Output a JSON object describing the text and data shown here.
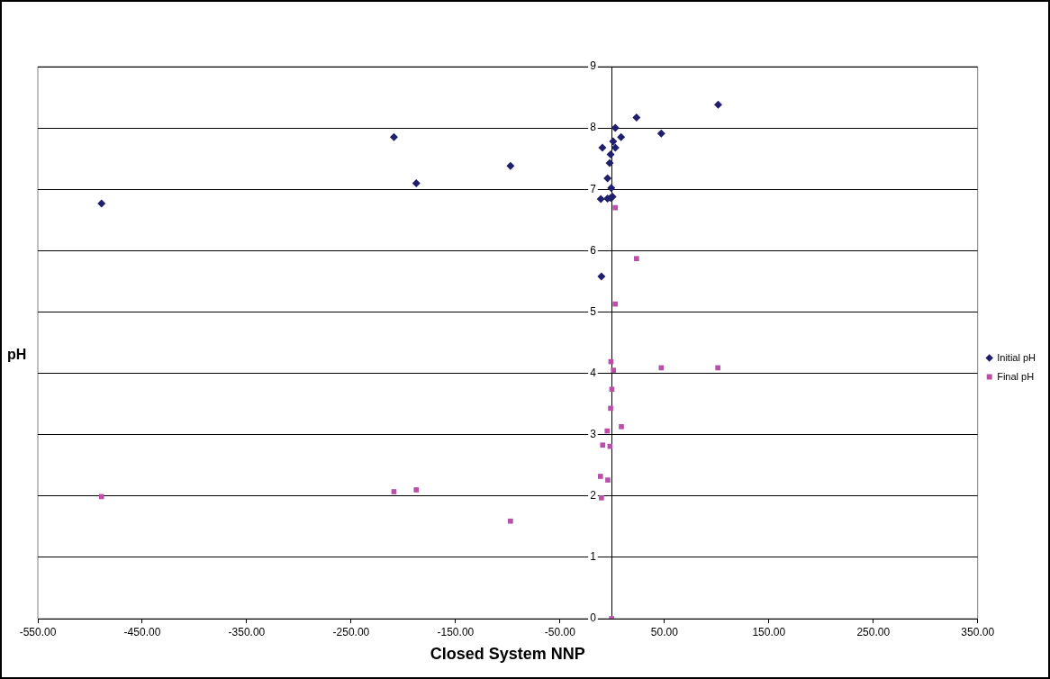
{
  "chart_data": {
    "type": "scatter",
    "xlabel": "Closed System NNP",
    "ylabel": "pH",
    "xlim": [
      -550,
      350
    ],
    "xticks": [
      {
        "value": -550,
        "label": "-550.00"
      },
      {
        "value": -450,
        "label": "-450.00"
      },
      {
        "value": -350,
        "label": "-350.00"
      },
      {
        "value": -250,
        "label": "-250.00"
      },
      {
        "value": -150,
        "label": "-150.00"
      },
      {
        "value": -50,
        "label": "-50.00"
      },
      {
        "value": 50,
        "label": "50.00"
      },
      {
        "value": 150,
        "label": "150.00"
      },
      {
        "value": 250,
        "label": "250.00"
      },
      {
        "value": 350,
        "label": "350.00"
      }
    ],
    "ylim": [
      0,
      9
    ],
    "yticks": [
      0,
      1,
      2,
      3,
      4,
      5,
      6,
      7,
      8,
      9
    ],
    "grid": "y",
    "legend": "right",
    "series": [
      {
        "name": "Initial pH",
        "color": "#1f1f6e",
        "marker": "diamond",
        "x": [
          -489,
          -209,
          -187.6,
          -97.4,
          101.5,
          23.3,
          3.0,
          47.0,
          8.5,
          0.9,
          -9.4,
          3.0,
          -1.5,
          -2.4,
          -4.5,
          -0.9,
          -10.9,
          -4.5,
          -1.5,
          0.3,
          -10.3
        ],
        "values": [
          6.77,
          7.85,
          7.1,
          7.38,
          8.38,
          8.17,
          8.0,
          7.91,
          7.85,
          7.78,
          7.68,
          7.68,
          7.57,
          7.43,
          7.18,
          7.02,
          6.84,
          6.85,
          6.86,
          6.88,
          5.58
        ]
      },
      {
        "name": "Final pH",
        "color": "#b94fa8",
        "marker": "square",
        "x": [
          -489,
          -209,
          -187.6,
          -97.4,
          3.0,
          23.3,
          3.0,
          -1.2,
          1.2,
          47.0,
          101.2,
          -0.3,
          -1.5,
          8.8,
          -4.8,
          -9.1,
          -2.1,
          -11.2,
          -4.2,
          -10.3,
          -0.6
        ],
        "values": [
          1.99,
          2.07,
          2.1,
          1.59,
          6.7,
          5.87,
          5.13,
          4.19,
          4.05,
          4.09,
          4.09,
          3.74,
          3.43,
          3.13,
          3.06,
          2.83,
          2.81,
          2.32,
          2.26,
          1.97,
          0
        ]
      }
    ]
  }
}
